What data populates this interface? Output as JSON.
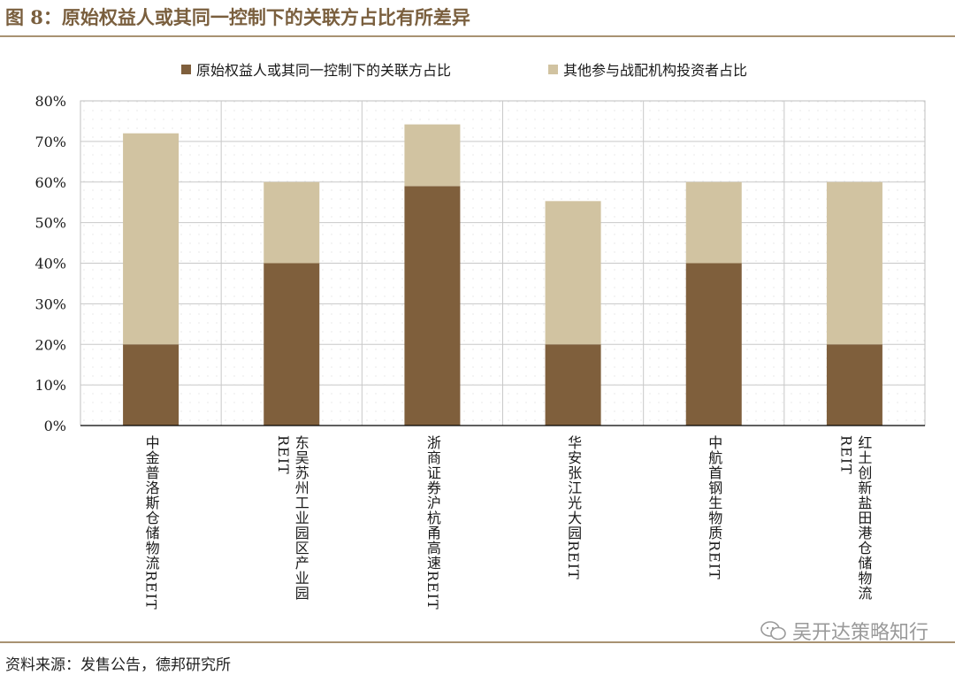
{
  "title": "图 8：原始权益人或其同一控制下的关联方占比有所差异",
  "source": "资料来源：发售公告，德邦研究所",
  "watermark": "吴开达策略知行",
  "colors": {
    "bottom": "#7f5f3c",
    "top": "#d1c3a1",
    "accent": "#a89272"
  },
  "chart_data": {
    "type": "bar",
    "stacked": true,
    "title": "",
    "xlabel": "",
    "ylabel": "",
    "ylim": [
      0,
      80
    ],
    "yticks": [
      "0%",
      "10%",
      "20%",
      "30%",
      "40%",
      "50%",
      "60%",
      "70%",
      "80%"
    ],
    "categories": [
      "中金普洛斯仓储物流REIT",
      "东吴苏州工业园区产业园\nREIT",
      "浙商证券沪杭甬高速REIT",
      "华安张江光大园REIT",
      "中航首钢生物质REIT",
      "红土创新盐田港仓储物流\nREIT"
    ],
    "series": [
      {
        "name": "原始权益人或其同一控制下的关联方占比",
        "values": [
          20,
          40,
          59,
          20,
          40,
          20
        ]
      },
      {
        "name": "其他参与战配机构投资者占比",
        "values": [
          52,
          20,
          15.2,
          35.3,
          20,
          40
        ]
      }
    ],
    "legend": "top",
    "grid": true
  }
}
